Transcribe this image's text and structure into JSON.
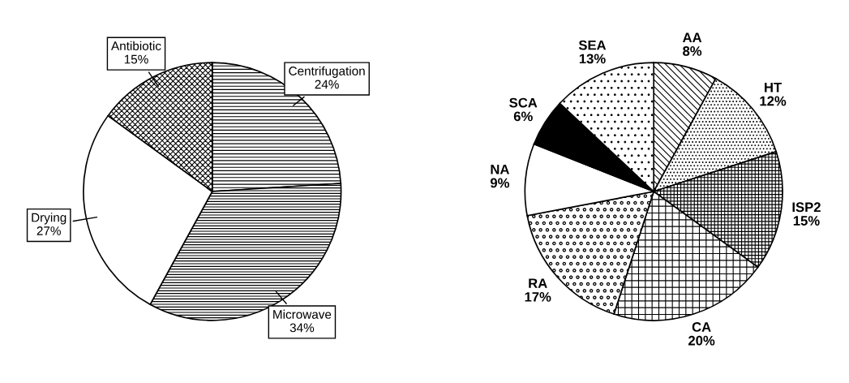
{
  "chart_data": [
    {
      "type": "pie",
      "categories": [
        "Centrifugation",
        "Microwave",
        "Drying",
        "Antibiotic"
      ],
      "values": [
        24,
        34,
        27,
        15
      ],
      "value_labels": [
        "24%",
        "34%",
        "27%",
        "15%"
      ],
      "colors": [
        "#ffffff",
        "#ffffff",
        "#ffffff",
        "#ffffff"
      ]
    },
    {
      "type": "pie",
      "categories": [
        "AA",
        "HT",
        "ISP2",
        "CA",
        "RA",
        "NA",
        "SCA",
        "SEA"
      ],
      "values": [
        8,
        12,
        15,
        20,
        17,
        9,
        6,
        13
      ],
      "value_labels": [
        "8%",
        "12%",
        "15%",
        "20%",
        "17%",
        "9%",
        "6%",
        "13%"
      ],
      "colors": [
        "#ffffff",
        "#ffffff",
        "#ffffff",
        "#ffffff",
        "#ffffff",
        "#ffffff",
        "#000000",
        "#ffffff"
      ]
    }
  ]
}
